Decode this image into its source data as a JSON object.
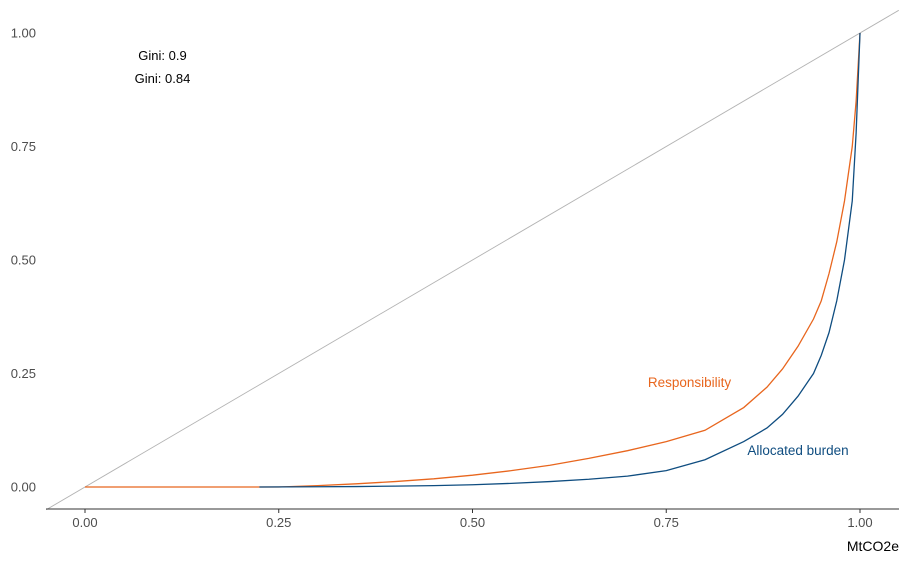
{
  "chart_data": {
    "type": "line",
    "xlabel": "MtCO2e",
    "ylabel": "",
    "xlim": [
      -0.05,
      1.05
    ],
    "ylim": [
      -0.05,
      1.05
    ],
    "x_ticks": [
      "0.00",
      "0.25",
      "0.50",
      "0.75",
      "1.00"
    ],
    "y_ticks": [
      "0.00",
      "0.25",
      "0.50",
      "0.75",
      "1.00"
    ],
    "grid": false,
    "annotations": [
      {
        "text": "Gini: 0.9",
        "x": 0.1,
        "y": 0.95
      },
      {
        "text": "Gini: 0.84",
        "x": 0.1,
        "y": 0.9
      }
    ],
    "reference_line": {
      "x": [
        -0.05,
        1.05
      ],
      "y": [
        -0.05,
        1.05
      ],
      "color": "#b3b3b3"
    },
    "series": [
      {
        "name": "Responsibility",
        "color": "#e8661e",
        "label_pos": [
          0.78,
          0.23
        ],
        "x": [
          0.0,
          0.25,
          0.3,
          0.35,
          0.4,
          0.45,
          0.5,
          0.55,
          0.6,
          0.65,
          0.7,
          0.75,
          0.8,
          0.85,
          0.88,
          0.9,
          0.92,
          0.94,
          0.95,
          0.96,
          0.97,
          0.98,
          0.99,
          0.995,
          1.0
        ],
        "y": [
          0.0,
          0.0,
          0.003,
          0.007,
          0.012,
          0.018,
          0.026,
          0.036,
          0.048,
          0.063,
          0.08,
          0.1,
          0.125,
          0.175,
          0.22,
          0.26,
          0.31,
          0.37,
          0.41,
          0.47,
          0.54,
          0.63,
          0.75,
          0.85,
          1.0
        ]
      },
      {
        "name": "Allocated burden",
        "color": "#0f4d80",
        "label_pos": [
          0.92,
          0.08
        ],
        "x": [
          0.225,
          0.3,
          0.35,
          0.4,
          0.45,
          0.5,
          0.55,
          0.6,
          0.65,
          0.7,
          0.75,
          0.8,
          0.85,
          0.88,
          0.9,
          0.92,
          0.94,
          0.95,
          0.96,
          0.97,
          0.98,
          0.99,
          0.995,
          1.0
        ],
        "y": [
          0.0,
          0.0005,
          0.001,
          0.002,
          0.003,
          0.005,
          0.008,
          0.012,
          0.017,
          0.024,
          0.036,
          0.06,
          0.1,
          0.13,
          0.16,
          0.2,
          0.25,
          0.29,
          0.34,
          0.41,
          0.5,
          0.63,
          0.78,
          1.0
        ]
      }
    ]
  }
}
